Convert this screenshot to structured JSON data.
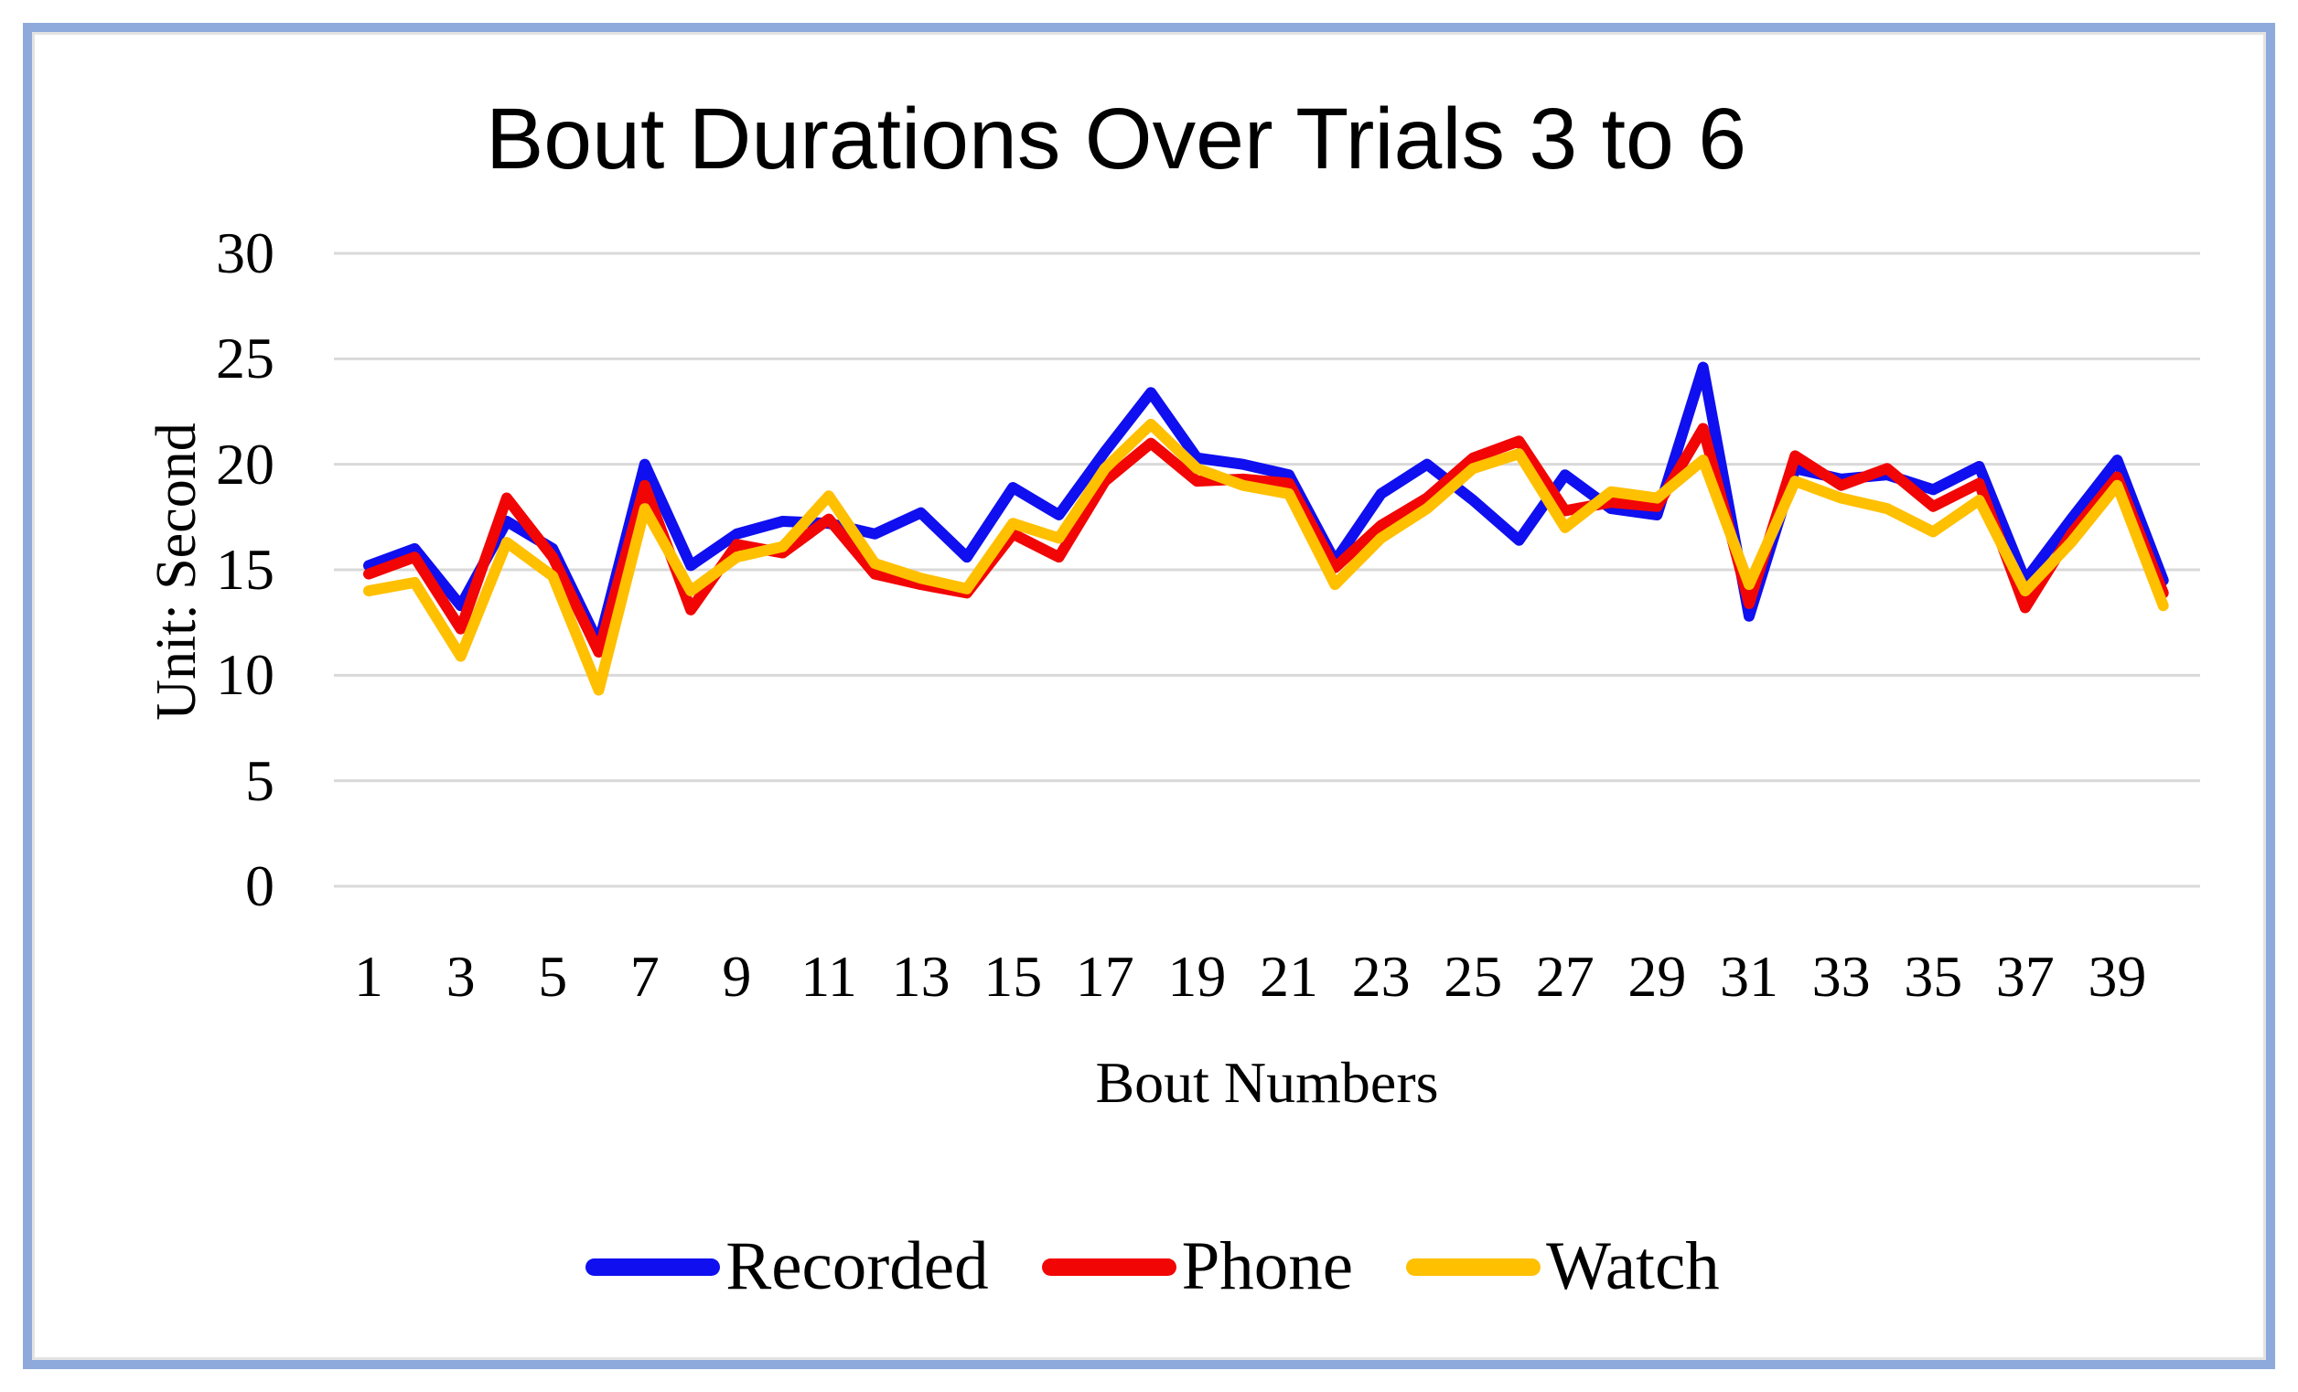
{
  "page": {
    "border_color": "#8ea9db",
    "background_color": "#ffffff"
  },
  "chart_data": {
    "type": "line",
    "title": "Bout Durations Over Trials 3 to 6",
    "xlabel": "Bout Numbers",
    "ylabel": "Unit: Second",
    "x": [
      1,
      2,
      3,
      4,
      5,
      6,
      7,
      8,
      9,
      10,
      11,
      12,
      13,
      14,
      15,
      16,
      17,
      18,
      19,
      20,
      21,
      22,
      23,
      24,
      25,
      26,
      27,
      28,
      29,
      30,
      31,
      32,
      33,
      34,
      35,
      36,
      37,
      38,
      39,
      40
    ],
    "x_tick_labels": [
      "1",
      "3",
      "5",
      "7",
      "9",
      "11",
      "13",
      "15",
      "17",
      "19",
      "21",
      "23",
      "25",
      "27",
      "29",
      "31",
      "33",
      "35",
      "37",
      "39"
    ],
    "y_ticks": [
      "0",
      "5",
      "10",
      "15",
      "20",
      "25",
      "30"
    ],
    "ylim": [
      0,
      30
    ],
    "grid": true,
    "gridline_color": "#d9d9d9",
    "legend_position": "bottom",
    "series": [
      {
        "name": "Recorded",
        "color": "#0f0fef",
        "values": [
          15.2,
          16.0,
          13.3,
          17.3,
          16.0,
          11.5,
          20.0,
          15.2,
          16.7,
          17.3,
          17.2,
          16.7,
          17.7,
          15.6,
          18.9,
          17.6,
          20.6,
          23.4,
          20.3,
          20.0,
          19.5,
          15.4,
          18.6,
          20.0,
          18.3,
          16.4,
          19.5,
          17.9,
          17.6,
          24.6,
          12.8,
          19.8,
          19.3,
          19.5,
          18.8,
          19.9,
          14.5,
          17.4,
          20.2,
          14.5
        ]
      },
      {
        "name": "Phone",
        "color": "#f20505",
        "values": [
          14.8,
          15.6,
          12.2,
          18.4,
          15.6,
          11.1,
          19.0,
          13.1,
          16.2,
          15.8,
          17.4,
          14.8,
          14.3,
          13.9,
          16.7,
          15.6,
          19.2,
          21.0,
          19.2,
          19.3,
          19.1,
          15.1,
          17.1,
          18.4,
          20.3,
          21.1,
          17.8,
          18.2,
          18.0,
          21.7,
          13.4,
          20.4,
          19.0,
          19.8,
          18.0,
          19.1,
          13.2,
          16.7,
          19.4,
          13.9
        ]
      },
      {
        "name": "Watch",
        "color": "#ffc000",
        "values": [
          14.0,
          14.4,
          10.9,
          16.3,
          14.7,
          9.3,
          17.9,
          14.0,
          15.6,
          16.1,
          18.5,
          15.3,
          14.6,
          14.1,
          17.2,
          16.5,
          19.8,
          21.9,
          19.8,
          19.0,
          18.6,
          14.3,
          16.5,
          17.9,
          19.8,
          20.5,
          17.0,
          18.7,
          18.4,
          20.2,
          14.3,
          19.2,
          18.4,
          17.9,
          16.8,
          18.3,
          14.0,
          16.3,
          19.0,
          13.3
        ]
      }
    ]
  }
}
